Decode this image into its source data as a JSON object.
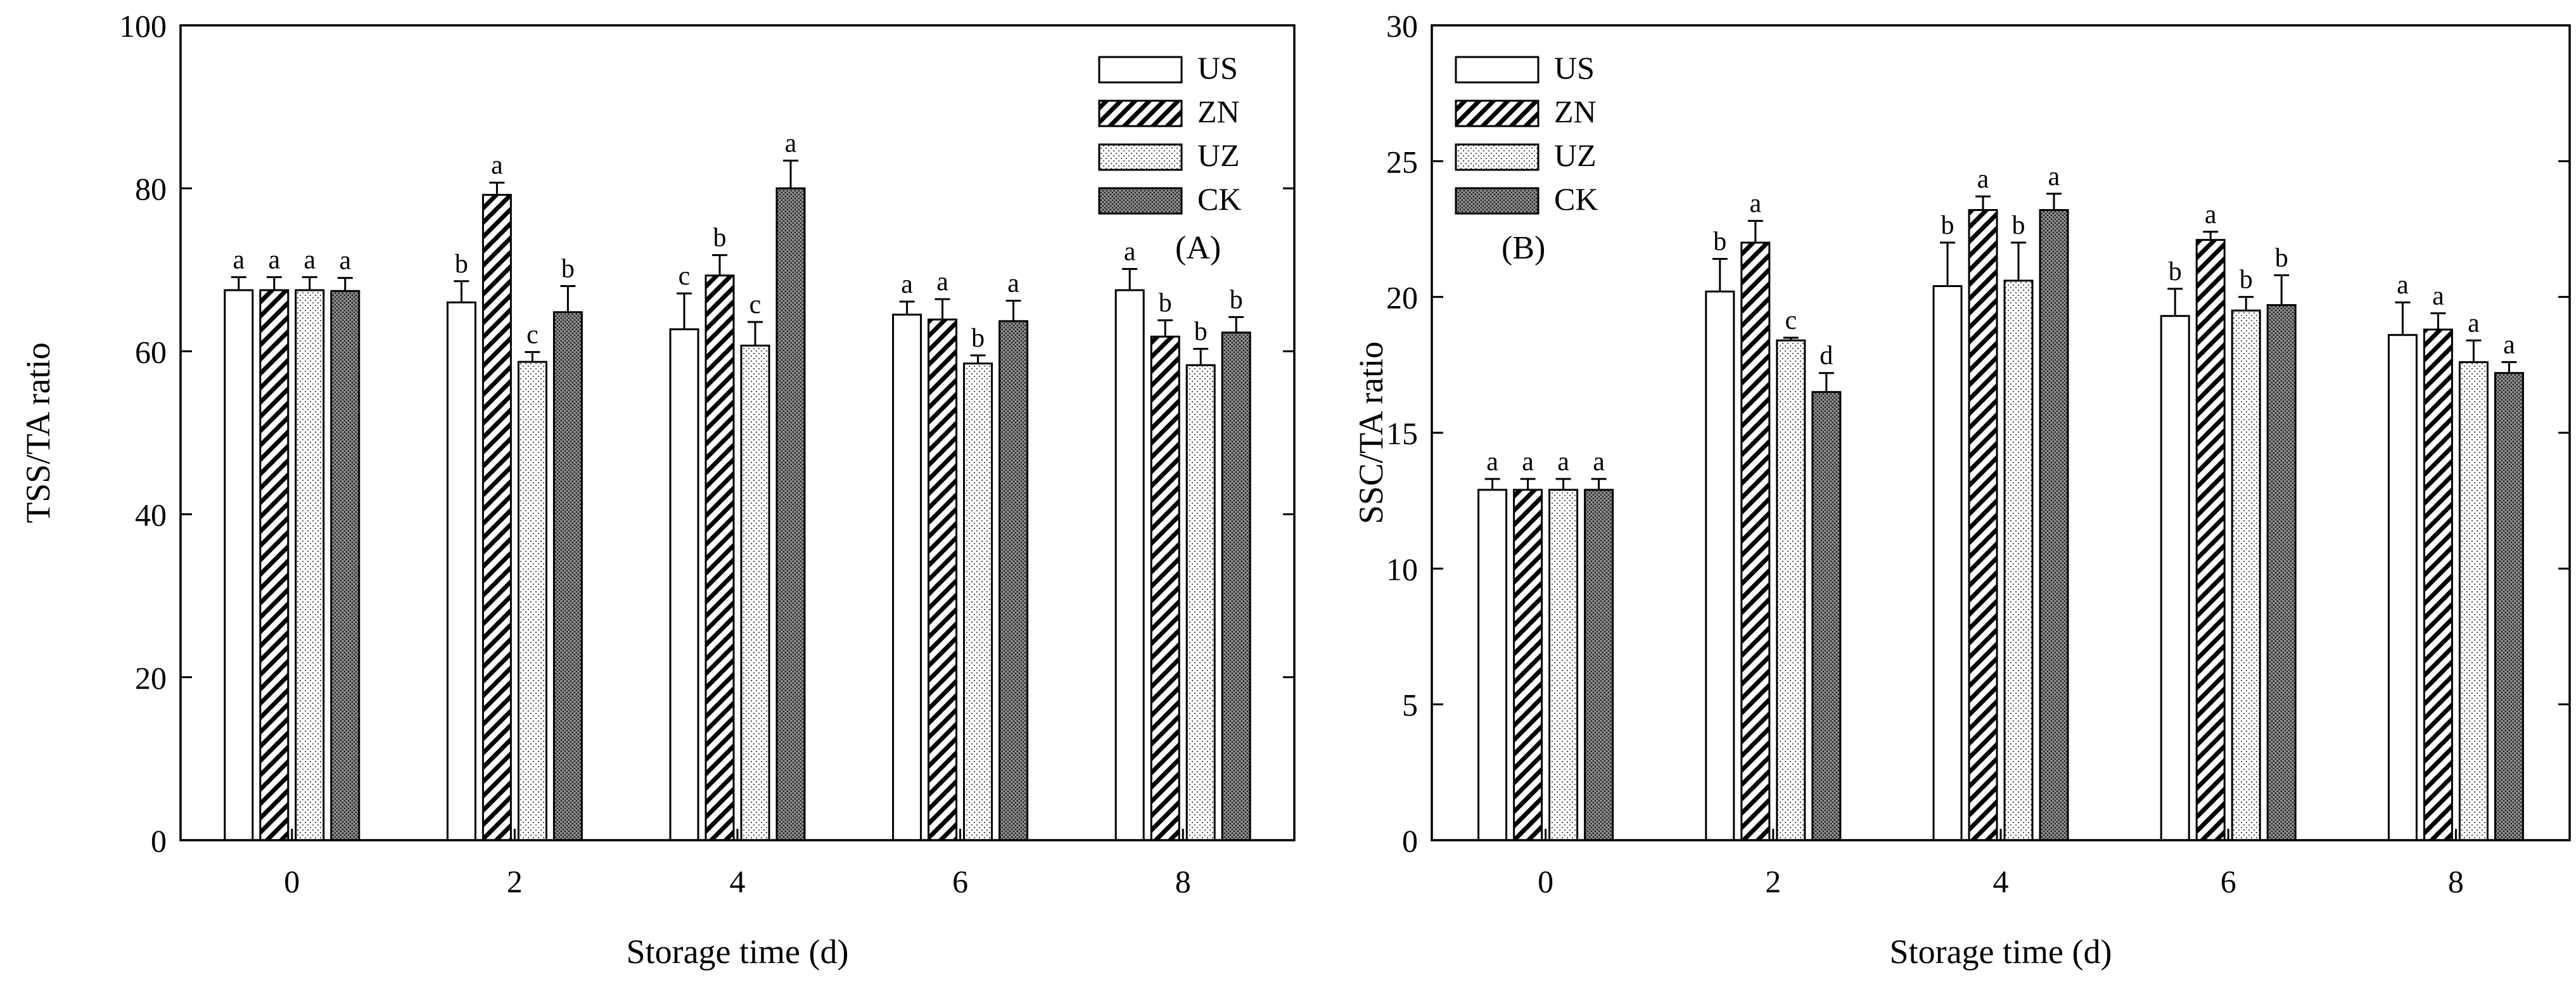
{
  "colors": {
    "ink": "#000000",
    "background": "#ffffff"
  },
  "chart_data": [
    {
      "type": "bar",
      "panel_label": "(A)",
      "xlabel": "Storage time (d)",
      "ylabel": "TSS/TA ratio",
      "ylim": [
        0,
        100
      ],
      "yticks": [
        0,
        20,
        40,
        60,
        80,
        100
      ],
      "ytick_labels": [
        "0",
        "20",
        "40",
        "60",
        "80",
        "100"
      ],
      "categories": [
        "0",
        "2",
        "4",
        "6",
        "8"
      ],
      "legend_position": "top-right",
      "series": [
        {
          "name": "US",
          "pattern": "white",
          "values": [
            67.5,
            66.0,
            62.7,
            64.5,
            67.5
          ],
          "errors": [
            1.6,
            2.6,
            4.4,
            1.6,
            2.6
          ],
          "letters": [
            "a",
            "b",
            "c",
            "a",
            "a"
          ]
        },
        {
          "name": "ZN",
          "pattern": "hatch",
          "values": [
            67.5,
            79.2,
            69.3,
            63.9,
            61.8
          ],
          "errors": [
            1.6,
            1.5,
            2.5,
            2.5,
            2.0
          ],
          "letters": [
            "a",
            "a",
            "b",
            "a",
            "b"
          ]
        },
        {
          "name": "UZ",
          "pattern": "dots",
          "values": [
            67.5,
            58.7,
            60.7,
            58.5,
            58.3
          ],
          "errors": [
            1.6,
            1.2,
            2.9,
            1.0,
            2.0
          ],
          "letters": [
            "a",
            "c",
            "c",
            "b",
            "b"
          ]
        },
        {
          "name": "CK",
          "pattern": "dense",
          "values": [
            67.4,
            64.8,
            80.0,
            63.7,
            62.3
          ],
          "errors": [
            1.6,
            3.2,
            3.4,
            2.5,
            1.9
          ],
          "letters": [
            "a",
            "b",
            "a",
            "a",
            "b"
          ]
        }
      ]
    },
    {
      "type": "bar",
      "panel_label": "(B)",
      "xlabel": "Storage time (d)",
      "ylabel": "SSC/TA ratio",
      "ylim": [
        0,
        30
      ],
      "yticks": [
        0,
        5,
        10,
        15,
        20,
        25,
        30
      ],
      "ytick_labels": [
        "0",
        "5",
        "10",
        "15",
        "20",
        "25",
        "30"
      ],
      "categories": [
        "0",
        "2",
        "4",
        "6",
        "8"
      ],
      "legend_position": "top-left",
      "series": [
        {
          "name": "US",
          "pattern": "white",
          "values": [
            12.9,
            20.2,
            20.4,
            19.3,
            18.6
          ],
          "errors": [
            0.4,
            1.2,
            1.6,
            1.0,
            1.2
          ],
          "letters": [
            "a",
            "b",
            "b",
            "b",
            "a"
          ]
        },
        {
          "name": "ZN",
          "pattern": "hatch",
          "values": [
            12.9,
            22.0,
            23.2,
            22.1,
            18.8
          ],
          "errors": [
            0.4,
            0.8,
            0.5,
            0.3,
            0.6
          ],
          "letters": [
            "a",
            "a",
            "a",
            "a",
            "a"
          ]
        },
        {
          "name": "UZ",
          "pattern": "dots",
          "values": [
            12.9,
            18.4,
            20.6,
            19.5,
            17.6
          ],
          "errors": [
            0.4,
            0.1,
            1.4,
            0.5,
            0.8
          ],
          "letters": [
            "a",
            "c",
            "b",
            "b",
            "a"
          ]
        },
        {
          "name": "CK",
          "pattern": "dense",
          "values": [
            12.9,
            16.5,
            23.2,
            19.7,
            17.2
          ],
          "errors": [
            0.4,
            0.7,
            0.6,
            1.1,
            0.4
          ],
          "letters": [
            "a",
            "d",
            "a",
            "b",
            "a"
          ]
        }
      ]
    }
  ]
}
